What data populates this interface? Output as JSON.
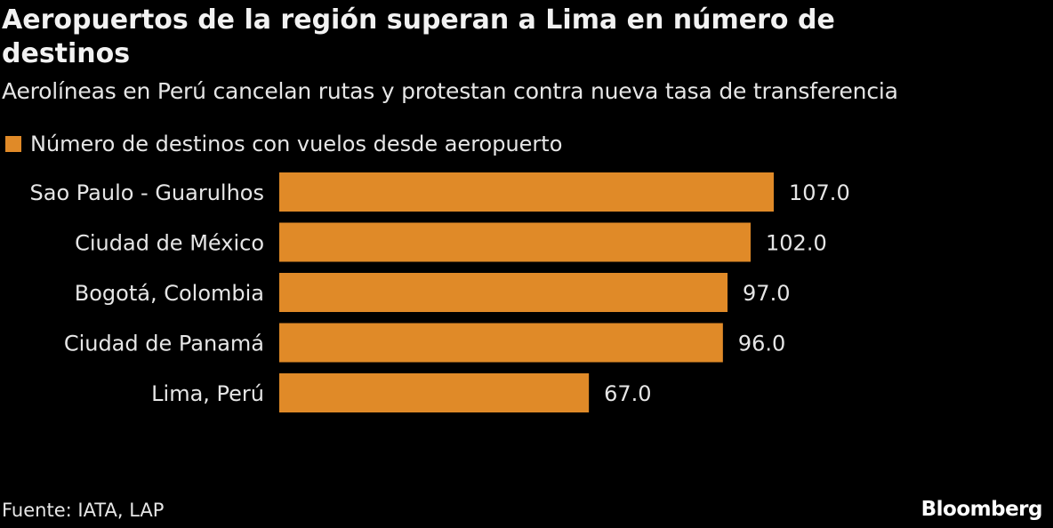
{
  "chart_data": {
    "type": "bar",
    "orientation": "horizontal",
    "title": "Aeropuertos de la región superan a Lima en número de destinos",
    "subtitle": "Aerolíneas en Perú cancelan rutas y protestan contra nueva tasa de transferencia",
    "categories": [
      "Sao Paulo - Guarulhos",
      "Ciudad de México",
      "Bogotá, Colombia",
      "Ciudad de Panamá",
      "Lima, Perú"
    ],
    "series": [
      {
        "name": "Número de destinos con vuelos desde aeropuerto",
        "values": [
          107,
          102,
          97,
          96,
          67
        ],
        "labels": [
          "107.0",
          "102.0",
          "97.0",
          "96.0",
          "67.0"
        ],
        "color": "#E08A28"
      }
    ],
    "xlim": [
      0,
      107
    ],
    "grid": false,
    "legend": "top-left",
    "source": "Fuente: IATA, LAP",
    "brand": "Bloomberg"
  }
}
